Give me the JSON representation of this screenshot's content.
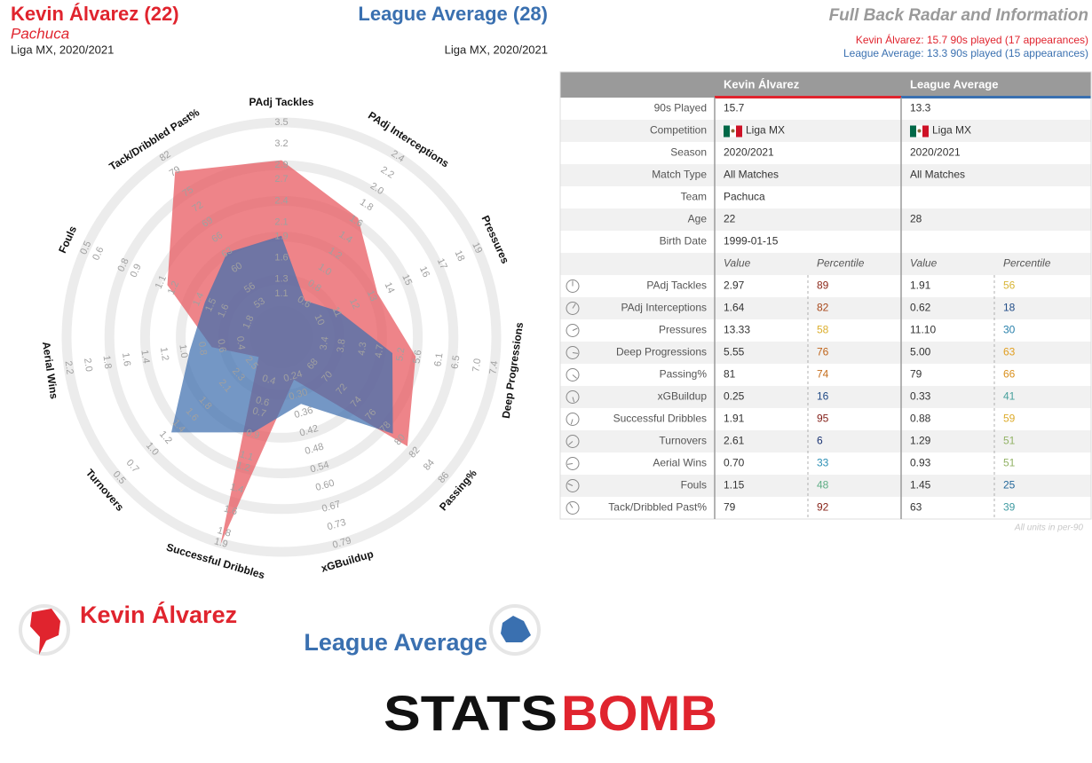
{
  "header": {
    "player_title": "Kevin Álvarez (22)",
    "player_team": "Pachuca",
    "player_comp": "Liga MX, 2020/2021",
    "league_title": "League Average (28)",
    "league_comp": "Liga MX, 2020/2021",
    "title": "Full Back Radar and Information",
    "player_note": "Kevin Álvarez: 15.7 90s played (17 appearances)",
    "league_note": "League Average: 13.3 90s played (15 appearances)"
  },
  "chart_data": {
    "type": "radar",
    "axes": [
      {
        "name": "PAdj Tackles",
        "lim": [
          0.8,
          3.5
        ],
        "ticks": [
          1.1,
          1.3,
          1.6,
          1.9,
          2.1,
          2.4,
          2.7,
          2.9,
          3.2,
          3.5
        ]
      },
      {
        "name": "PAdj Interceptions",
        "lim": [
          0.4,
          2.4
        ],
        "ticks": [
          0.6,
          0.8,
          {
            "value": 1,
            "label": "1.0"
          },
          1.2,
          1.4,
          1.6,
          1.8,
          {
            "value": 2,
            "label": "2.0"
          },
          2.2,
          2.4
        ]
      },
      {
        "name": "Pressures",
        "lim": [
          9,
          19
        ],
        "ticks": [
          10,
          11,
          12,
          13,
          14,
          15,
          16,
          17,
          18,
          19
        ]
      },
      {
        "name": "Deep Progressions",
        "lim": [
          2.9,
          7.4
        ],
        "ticks": [
          3.4,
          3.8,
          4.3,
          4.7,
          5.2,
          5.6,
          6.1,
          6.5,
          {
            "value": 7,
            "label": "7.0"
          },
          7.4
        ]
      },
      {
        "name": "Passing%",
        "lim": [
          66,
          86
        ],
        "ticks": [
          68,
          70,
          72,
          74,
          76,
          78,
          80,
          82,
          84,
          86
        ]
      },
      {
        "name": "xGBuildup",
        "lim": [
          0.18,
          0.79
        ],
        "ticks": [
          0.24,
          {
            "value": 0.3,
            "label": "0.30"
          },
          0.36,
          0.42,
          0.48,
          0.54,
          {
            "value": 0.6,
            "label": "0.60"
          },
          0.67,
          0.73,
          0.79
        ]
      },
      {
        "name": "Successful Dribbles",
        "lim": [
          0.2,
          1.9
        ],
        "ticks": [
          0.4,
          0.6,
          0.7,
          0.9,
          1.1,
          1.2,
          1.4,
          1.6,
          1.8,
          1.9
        ]
      },
      {
        "name": "Turnovers",
        "lim": [
          2.7,
          0.5
        ],
        "ticks": [
          2.5,
          2.3,
          2.1,
          1.8,
          1.6,
          1.4,
          1.2,
          {
            "value": 1,
            "label": "1.0"
          },
          0.7,
          0.5
        ]
      },
      {
        "name": "Aerial Wins",
        "lim": [
          0.2,
          2.2
        ],
        "ticks": [
          0.4,
          0.6,
          0.8,
          {
            "value": 1,
            "label": "1.0"
          },
          1.2,
          1.4,
          1.6,
          1.8,
          {
            "value": 2,
            "label": "2.0"
          },
          2.2
        ]
      },
      {
        "name": "Fouls",
        "lim": [
          1.9,
          0.5
        ],
        "ticks": [
          1.8,
          1.6,
          1.5,
          1.4,
          1.2,
          1.1,
          0.9,
          0.8,
          0.6,
          0.5
        ]
      },
      {
        "name": "Tack/Dribbled Past%",
        "lim": [
          50,
          82
        ],
        "ticks": [
          53,
          56,
          60,
          63,
          66,
          69,
          72,
          75,
          79,
          82
        ]
      }
    ],
    "series": [
      {
        "name": "Kevin Álvarez",
        "color": "#e0242e",
        "fill": "#e8545c",
        "values": [
          2.97,
          1.64,
          13.33,
          5.55,
          81,
          0.25,
          1.91,
          2.61,
          0.7,
          1.15,
          79
        ],
        "value_labels": [
          "2.97",
          "1.64",
          "13.33",
          "5.55",
          "81",
          "0.25",
          "1.91",
          "2.61",
          "0.70",
          "1.15",
          "79"
        ],
        "percentiles": [
          89,
          82,
          58,
          76,
          74,
          16,
          95,
          6,
          33,
          48,
          92
        ]
      },
      {
        "name": "League Average",
        "color": "#3a70b0",
        "fill": "#3f6fae",
        "values": [
          1.91,
          0.62,
          11.1,
          5,
          79,
          0.33,
          0.88,
          1.29,
          0.93,
          1.45,
          63
        ],
        "value_labels": [
          "1.91",
          "0.62",
          "11.10",
          "5.00",
          "79",
          "0.33",
          "0.88",
          "1.29",
          "0.93",
          "1.45",
          "63"
        ],
        "percentiles": [
          56,
          18,
          30,
          63,
          66,
          41,
          59,
          51,
          51,
          25,
          39
        ]
      }
    ]
  },
  "table": {
    "meta": [
      {
        "label": "90s Played",
        "player": "15.7",
        "league": "13.3"
      },
      {
        "label": "Competition",
        "player": "Liga MX",
        "league": "Liga MX"
      },
      {
        "label": "Season",
        "player": "2020/2021",
        "league": "2020/2021"
      },
      {
        "label": "Match Type",
        "player": "All Matches",
        "league": "All Matches"
      },
      {
        "label": "Team",
        "player": "Pachuca",
        "league": null
      },
      {
        "label": "Age",
        "player": "22",
        "league": "28"
      },
      {
        "label": "Birth Date",
        "player": "1999-01-15",
        "league": null
      }
    ],
    "col_heads": [
      "Value",
      "Percentile"
    ],
    "footnote": "All units in per-90"
  },
  "logo": {
    "left": "STATS",
    "right": "BOMB"
  }
}
